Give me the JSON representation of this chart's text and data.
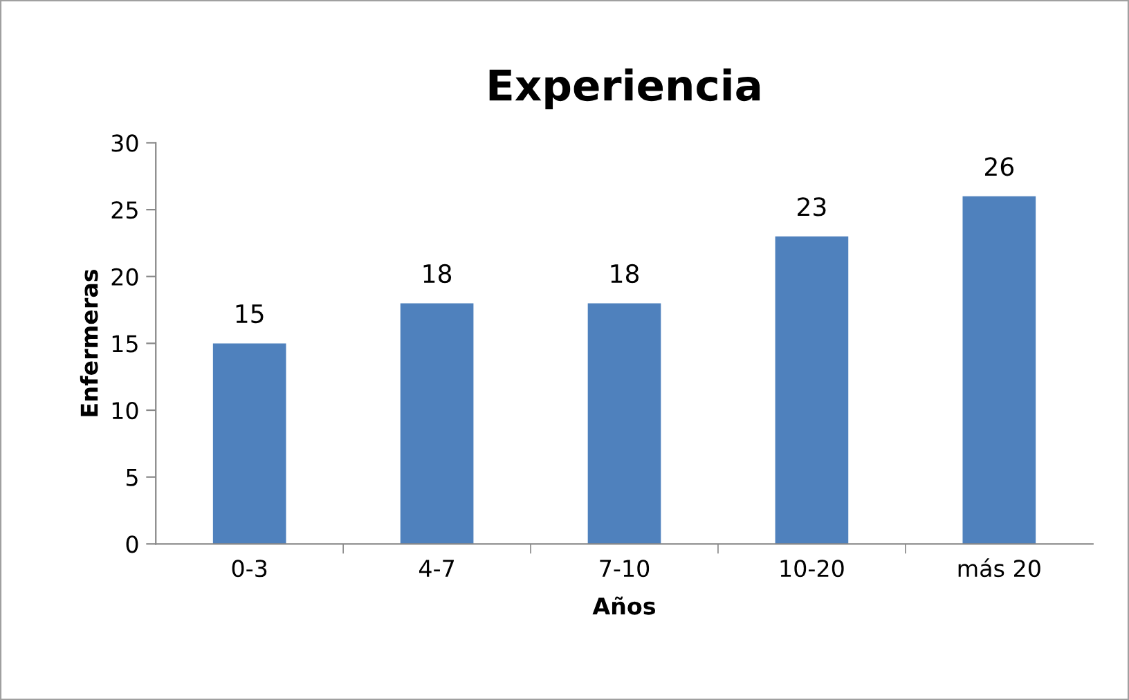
{
  "chart_data": {
    "type": "bar",
    "title": "Experiencia",
    "xlabel": "Años",
    "ylabel": "Enfermeras",
    "categories": [
      "0-3",
      "4-7",
      "7-10",
      "10-20",
      "más 20"
    ],
    "values": [
      15,
      18,
      18,
      23,
      26
    ],
    "color": "#4f81bd",
    "ylim": [
      0,
      30
    ],
    "yticks": [
      0,
      5,
      10,
      15,
      20,
      25,
      30
    ],
    "grid": false,
    "legend": false,
    "data_labels": true
  }
}
